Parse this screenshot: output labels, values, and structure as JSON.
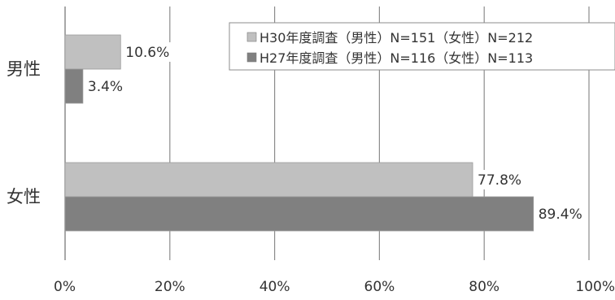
{
  "chart_data": {
    "type": "bar",
    "orientation": "horizontal",
    "categories": [
      "男性",
      "女性"
    ],
    "series": [
      {
        "name": "H30年度調査（男性）N=151（女性）N=212",
        "values": [
          10.6,
          77.8
        ],
        "labels": [
          "10.6%",
          "77.8%"
        ],
        "color": "#c0c0c0"
      },
      {
        "name": "H27年度調査（男性）N=116（女性）N=113",
        "values": [
          3.4,
          89.4
        ],
        "labels": [
          "3.4%",
          "89.4%"
        ],
        "color": "#808080"
      }
    ],
    "xlim": [
      0,
      100
    ],
    "xticks": [
      "0%",
      "20%",
      "40%",
      "60%",
      "80%",
      "100%"
    ],
    "grid": true,
    "legend_position": "top-right"
  }
}
